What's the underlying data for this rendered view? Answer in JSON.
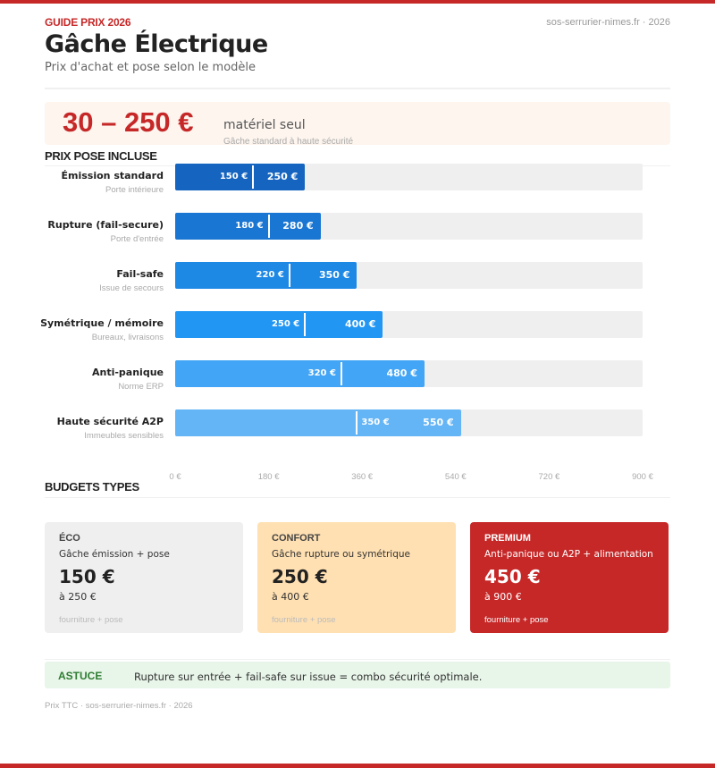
{
  "header": {
    "kicker": "GUIDE PRIX 2026",
    "site": "sos-serrurier-nimes.fr · 2026",
    "title": "Gâche Électrique",
    "subtitle": "Prix d'achat et pose selon le modèle"
  },
  "hero": {
    "range": "30 – 250 €",
    "unit": "matériel seul",
    "note": "Gâche standard à haute sécurité"
  },
  "chart_data": {
    "type": "bar",
    "title": "PRIX POSE INCLUSE",
    "orientation": "horizontal-range",
    "xlim": [
      0,
      900
    ],
    "ticks": [
      "0 €",
      "180 €",
      "360 €",
      "540 €",
      "720 €",
      "900 €"
    ],
    "tick_values": [
      0,
      180,
      360,
      540,
      720,
      900
    ],
    "categories": [
      {
        "label": "Émission standard",
        "sub": "Porte intérieure",
        "min": 150,
        "max": 250,
        "min_label": "150 €",
        "max_label": "250 €",
        "color": "#1565c0"
      },
      {
        "label": "Rupture (fail-secure)",
        "sub": "Porte d'entrée",
        "min": 180,
        "max": 280,
        "min_label": "180 €",
        "max_label": "280 €",
        "color": "#1976d2"
      },
      {
        "label": "Fail-safe",
        "sub": "Issue de secours",
        "min": 220,
        "max": 350,
        "min_label": "220 €",
        "max_label": "350 €",
        "color": "#1e88e5"
      },
      {
        "label": "Symétrique / mémoire",
        "sub": "Bureaux, livraisons",
        "min": 250,
        "max": 400,
        "min_label": "250 €",
        "max_label": "400 €",
        "color": "#2196f3"
      },
      {
        "label": "Anti-panique",
        "sub": "Norme ERP",
        "min": 320,
        "max": 480,
        "min_label": "320 €",
        "max_label": "480 €",
        "color": "#42a5f5"
      },
      {
        "label": "Haute sécurité A2P",
        "sub": "Immeubles sensibles",
        "min": 350,
        "max": 550,
        "min_label": "350 €",
        "max_label": "550 €",
        "color": "#64b5f6"
      }
    ]
  },
  "budgets": {
    "title": "BUDGETS TYPES",
    "cards": [
      {
        "name": "ÉCO",
        "desc": "Gâche émission + pose",
        "price": "150 €",
        "max": "à 250 €",
        "foot": "fourniture + pose",
        "bg": "#efefef"
      },
      {
        "name": "CONFORT",
        "desc": "Gâche rupture ou symétrique",
        "price": "250 €",
        "max": "à 400 €",
        "foot": "fourniture + pose",
        "bg": "#ffe0b2"
      },
      {
        "name": "PREMIUM",
        "desc": "Anti-panique ou A2P + alimentation",
        "price": "450 €",
        "max": "à 900 €",
        "foot": "fourniture + pose",
        "bg": "#c62828"
      }
    ]
  },
  "tip": {
    "label": "ASTUCE",
    "text": "Rupture sur entrée + fail-safe sur issue = combo sécurité optimale."
  },
  "footer": "Prix TTC · sos-serrurier-nimes.fr · 2026"
}
